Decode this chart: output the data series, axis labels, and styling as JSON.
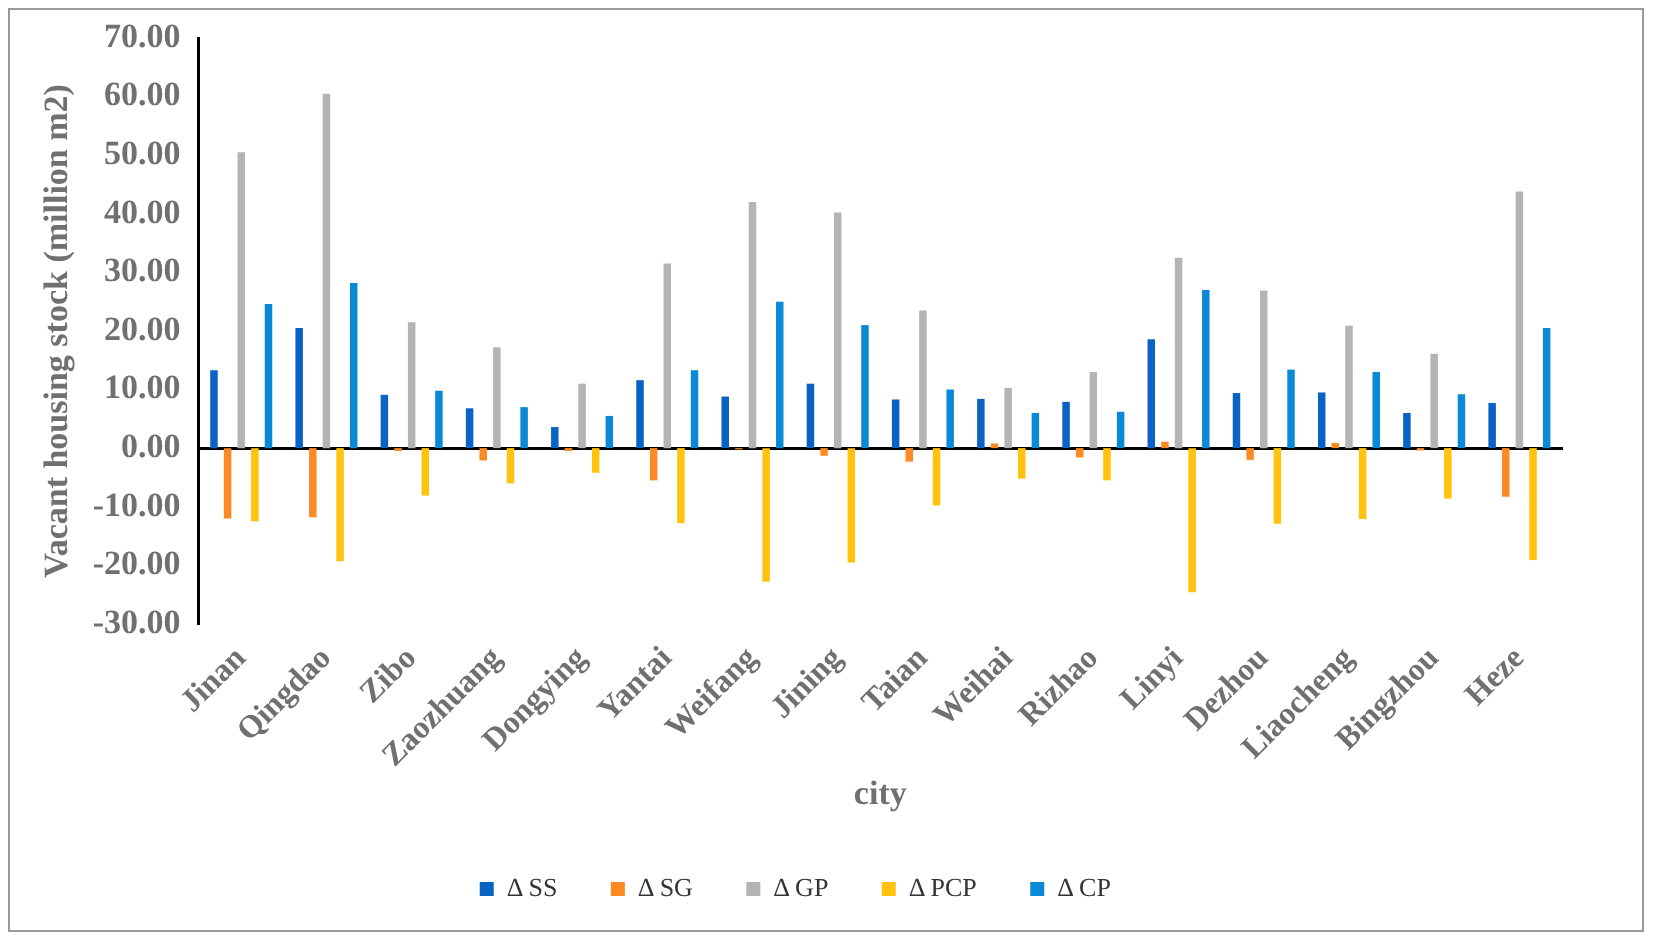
{
  "chart_data": {
    "type": "bar",
    "xlabel": "city",
    "ylabel": "Vacant housing stock (million m2)",
    "categories": [
      "Jinan",
      "Qingdao",
      "Zibo",
      "Zaozhuang",
      "Dongying",
      "Yantai",
      "Weifang",
      "Jining",
      "Taian",
      "Weihai",
      "Rizhao",
      "Linyi",
      "Dezhou",
      "Liaocheng",
      "Bingzhou",
      "Heze"
    ],
    "series": [
      {
        "name": "Δ SS",
        "color": "#0a62c4",
        "values": [
          13.3,
          20.5,
          9.1,
          6.8,
          3.6,
          11.6,
          8.8,
          11.0,
          8.3,
          8.4,
          7.9,
          18.6,
          9.4,
          9.5,
          6.0,
          7.7
        ]
      },
      {
        "name": "Δ SG",
        "color": "#fb8a24",
        "values": [
          -12.0,
          -11.8,
          -0.5,
          -2.1,
          -0.5,
          -5.5,
          -0.2,
          -1.3,
          -2.3,
          0.8,
          -1.6,
          1.1,
          -2.0,
          0.9,
          -0.4,
          -8.3
        ]
      },
      {
        "name": "Δ GP",
        "color": "#b4b4b4",
        "values": [
          50.5,
          60.5,
          21.5,
          17.2,
          11.0,
          31.5,
          42.0,
          40.2,
          23.5,
          10.3,
          13.0,
          32.5,
          26.9,
          20.9,
          16.1,
          43.8
        ]
      },
      {
        "name": "Δ PCP",
        "color": "#ffc20e",
        "values": [
          -12.5,
          -19.3,
          -8.1,
          -6.0,
          -4.2,
          -12.8,
          -22.8,
          -19.5,
          -9.8,
          -5.2,
          -5.5,
          -24.6,
          -12.9,
          -12.1,
          -8.6,
          -19.1
        ]
      },
      {
        "name": "Δ CP",
        "color": "#0a8ad6",
        "values": [
          24.6,
          28.2,
          9.8,
          7.0,
          5.5,
          13.3,
          25.0,
          21.0,
          10.0,
          6.0,
          6.2,
          27.0,
          13.4,
          13.0,
          9.2,
          20.5
        ]
      }
    ],
    "ylim": [
      -30,
      70
    ],
    "yticks": [
      {
        "value": -30,
        "label": "-30.00"
      },
      {
        "value": -20,
        "label": "-20.00"
      },
      {
        "value": -10,
        "label": "-10.00"
      },
      {
        "value": 0,
        "label": "0.00"
      },
      {
        "value": 10,
        "label": "10.00"
      },
      {
        "value": 20,
        "label": "20.00"
      },
      {
        "value": 30,
        "label": "30.00"
      },
      {
        "value": 40,
        "label": "40.00"
      },
      {
        "value": 50,
        "label": "50.00"
      },
      {
        "value": 60,
        "label": "60.00"
      },
      {
        "value": 70,
        "label": "70.00"
      }
    ],
    "legend": "bottom"
  }
}
